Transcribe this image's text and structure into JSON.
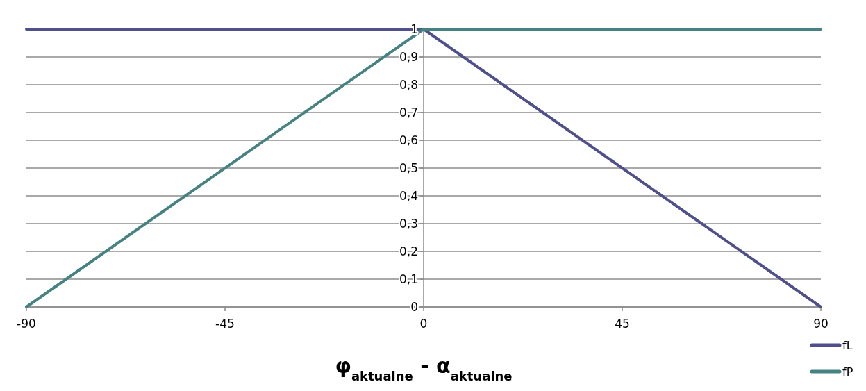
{
  "chart_data": {
    "type": "line",
    "xlabel": "φ$_{aktualne}$ - α$_{aktualne}$",
    "x": [
      -90,
      0,
      90
    ],
    "series": [
      {
        "name": "fL",
        "color": "#4f4f8c",
        "values": [
          1,
          1,
          0
        ]
      },
      {
        "name": "fP",
        "color": "#468282",
        "values": [
          0,
          1,
          1
        ]
      }
    ],
    "xlim": [
      -90,
      90
    ],
    "xticks": [
      -90,
      -45,
      0,
      45,
      90
    ],
    "ylim": [
      0,
      1
    ],
    "yticks": [
      0,
      {
        "value": 0.1,
        "label": "0,1"
      },
      {
        "value": 0.2,
        "label": "0,2"
      },
      {
        "value": 0.3,
        "label": "0,3"
      },
      {
        "value": 0.4,
        "label": "0,4"
      },
      {
        "value": 0.5,
        "label": "0,5"
      },
      {
        "value": 0.6,
        "label": "0,6"
      },
      {
        "value": 0.7,
        "label": "0,7"
      },
      {
        "value": 0.8,
        "label": "0,8"
      },
      {
        "value": 0.9,
        "label": "0,9"
      },
      1
    ],
    "grid": "y",
    "legend": "bottom right",
    "marker": "none",
    "line_style": "solid"
  }
}
